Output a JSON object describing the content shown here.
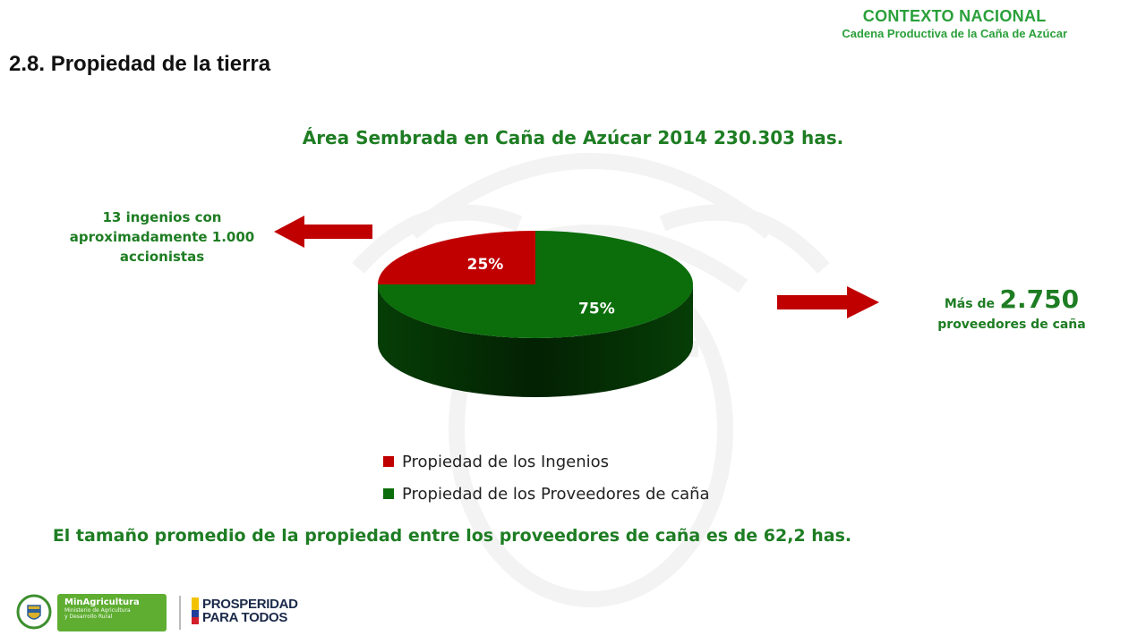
{
  "header": {
    "context_title": "CONTEXTO NACIONAL",
    "context_subtitle": "Cadena Productiva de la Caña de Azúcar",
    "section_title": "2.8. Propiedad de la tierra"
  },
  "annotations": {
    "left": [
      "13 ingenios con",
      "aproximadamente 1.000",
      "accionistas"
    ],
    "right_prefix": "Más de",
    "right_number": "2.750",
    "right_suffix": "proveedores de caña",
    "bottom": "El tamaño promedio de la propiedad entre los proveedores de caña es de 62,2 has."
  },
  "footer": {
    "ministry_name": "MinAgricultura",
    "ministry_sub1": "Ministerio de Agricultura",
    "ministry_sub2": "y Desarrollo Rural",
    "slogan_line1": "PROSPERIDAD",
    "slogan_line2": "PARA TODOS"
  },
  "colors": {
    "accent_green": "#1e7d23",
    "context_green": "#2aa03a",
    "ingenios_red": "#c00000",
    "proveedores_green": "#0b6e0b",
    "arrow_red": "#c00000"
  },
  "icons": {
    "left_arrow": "arrow-left-icon",
    "right_arrow": "arrow-right-icon"
  },
  "chart_data": {
    "type": "pie",
    "title": "Área Sembrada en Caña de Azúcar 2014 230.303 has.",
    "categories": [
      "Propiedad de los Ingenios",
      "Propiedad de los Proveedores de caña"
    ],
    "values": [
      25,
      75
    ],
    "labels": [
      "25%",
      "75%"
    ],
    "colors": [
      "#c00000",
      "#0b6e0b"
    ],
    "legend_position": "bottom",
    "style": "3d"
  }
}
